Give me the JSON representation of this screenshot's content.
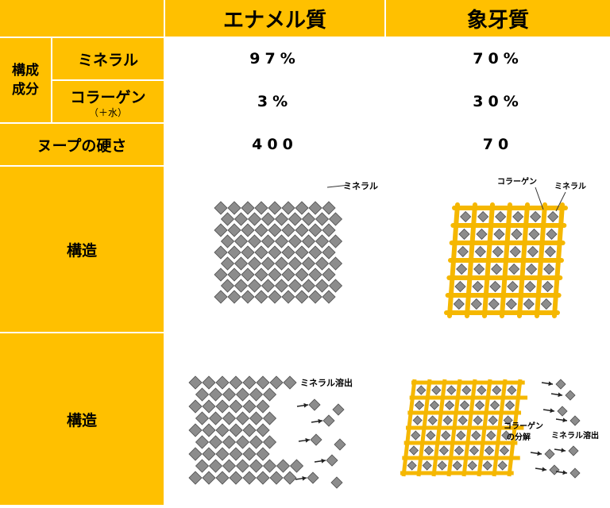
{
  "header": {
    "enamel": "エナメル質",
    "dentin": "象牙質"
  },
  "composition": {
    "group_label": "構成\n成分",
    "mineral": {
      "label": "ミネラル",
      "enamel": "97%",
      "dentin": "70%"
    },
    "collagen": {
      "label": "コラーゲン",
      "sub": "（＋水）",
      "enamel": "3%",
      "dentin": "30%"
    }
  },
  "hardness": {
    "label": "ヌープの硬さ",
    "enamel": "400",
    "dentin": "70"
  },
  "structure": {
    "label": "構造",
    "enamel_callout": "ミネラル",
    "dentin_callout_collagen": "コラーゲン",
    "dentin_callout_mineral": "ミネラル"
  },
  "dissolution": {
    "label": "構造",
    "enamel_callout": "ミネラル溶出",
    "dentin_callout_collagen_1": "コラーゲン",
    "dentin_callout_collagen_2": "の分解",
    "dentin_callout_mineral": "ミネラル溶出"
  },
  "colors": {
    "header": "#ffc000",
    "mineral": "#8c8c8c",
    "mineral_stroke": "#4d4d4d",
    "collagen": "#f5b700",
    "grid_line": "#d9d9d9"
  }
}
